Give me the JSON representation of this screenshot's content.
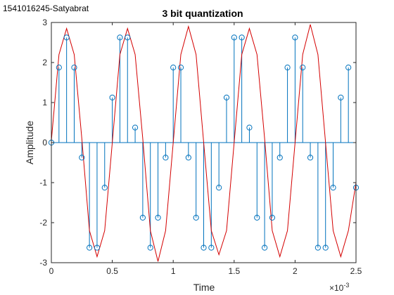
{
  "figure": {
    "label": "1541016245-Satyabrat"
  },
  "chart_data": {
    "type": "line",
    "title": "3 bit quantization",
    "xlabel": "Time",
    "ylabel": "Amplitude",
    "x_exponent_label": "×10",
    "x_exponent": "-3",
    "xlim": [
      0,
      2.5
    ],
    "ylim": [
      -3,
      3
    ],
    "xticks": [
      0,
      0.5,
      1,
      1.5,
      2,
      2.5
    ],
    "xtick_labels": [
      "0",
      "0.5",
      "1",
      "1.5",
      "2",
      "2.5"
    ],
    "yticks": [
      -3,
      -2,
      -1,
      0,
      1,
      2,
      3
    ],
    "ytick_labels": [
      "-3",
      "-2",
      "-1",
      "0",
      "1",
      "2",
      "3"
    ],
    "x_units_note": "x values in units of 1e-3 (ms scale as printed by axis multiplier)",
    "grid": false,
    "colors": {
      "stem": "#0072bd",
      "line": "#d40000",
      "axis": "#262626"
    },
    "series": [
      {
        "kind": "line",
        "x": [
          0,
          0.0625,
          0.125,
          0.1875,
          0.25,
          0.3125,
          0.375,
          0.4375,
          0.5,
          0.5625,
          0.625,
          0.6875,
          0.75,
          0.8125,
          0.875,
          0.9375,
          1.0,
          1.0625,
          1.125,
          1.1875,
          1.25,
          1.3125,
          1.375,
          1.4375,
          1.5,
          1.5625,
          1.625,
          1.6875,
          1.75,
          1.8125,
          1.875,
          1.9375,
          2.0,
          2.0625,
          2.125,
          2.1875,
          2.25,
          2.3125,
          2.375,
          2.4375,
          2.5
        ],
        "y": [
          0.05,
          2.2,
          2.85,
          2.2,
          0.1,
          -2.2,
          -2.85,
          -2.2,
          0.0,
          2.2,
          2.85,
          2.2,
          0.1,
          -2.2,
          -2.97,
          -2.2,
          0.0,
          2.2,
          2.9,
          2.2,
          0.0,
          -2.2,
          -2.8,
          -2.2,
          0.0,
          2.2,
          2.85,
          2.2,
          0.1,
          -2.2,
          -2.85,
          -2.2,
          0.0,
          2.2,
          2.95,
          2.2,
          0.0,
          -2.2,
          -2.85,
          -2.2,
          -1.0
        ]
      },
      {
        "kind": "stem",
        "x": [
          0,
          0.0625,
          0.125,
          0.1875,
          0.25,
          0.3125,
          0.375,
          0.4375,
          0.5,
          0.5625,
          0.625,
          0.6875,
          0.75,
          0.8125,
          0.875,
          0.9375,
          1.0,
          1.0625,
          1.125,
          1.1875,
          1.25,
          1.3125,
          1.375,
          1.4375,
          1.5,
          1.5625,
          1.625,
          1.6875,
          1.75,
          1.8125,
          1.875,
          1.9375,
          2.0,
          2.0625,
          2.125,
          2.1875,
          2.25,
          2.3125,
          2.375,
          2.4375,
          2.5
        ],
        "y": [
          0,
          1.875,
          2.625,
          1.875,
          -0.375,
          -2.625,
          -2.625,
          -1.125,
          1.125,
          2.625,
          2.625,
          0.375,
          -1.875,
          -2.625,
          -1.875,
          -0.375,
          1.875,
          1.875,
          -0.375,
          -1.875,
          -2.625,
          -2.625,
          -1.125,
          1.125,
          2.625,
          2.625,
          0.375,
          -1.875,
          -2.625,
          -1.875,
          -0.375,
          1.875,
          2.625,
          1.875,
          -0.375,
          -2.625,
          -2.625,
          -1.125,
          1.125,
          1.875,
          -1.125
        ]
      }
    ]
  }
}
